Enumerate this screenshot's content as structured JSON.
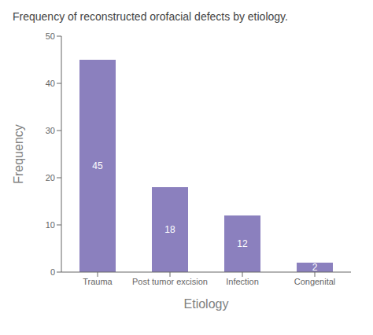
{
  "chart_data": {
    "type": "bar",
    "title": "Frequency of reconstructed orofacial defects by etiology.",
    "xlabel": "Etiology",
    "ylabel": "Frequency",
    "categories": [
      "Trauma",
      "Post tumor excision",
      "Infection",
      "Congenital"
    ],
    "values": [
      45,
      18,
      12,
      2
    ],
    "color": "#8B80BE",
    "ylim": [
      0,
      50
    ],
    "yticks": [
      0,
      10,
      20,
      30,
      40,
      50
    ],
    "grid": false,
    "data_labels": true
  }
}
